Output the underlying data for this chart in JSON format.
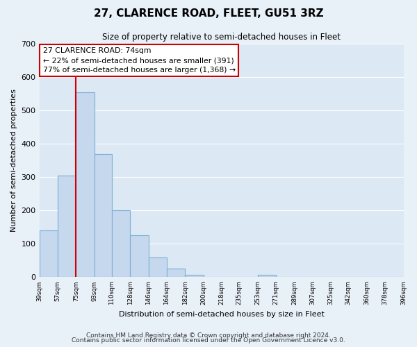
{
  "title": "27, CLARENCE ROAD, FLEET, GU51 3RZ",
  "subtitle": "Size of property relative to semi-detached houses in Fleet",
  "xlabel": "Distribution of semi-detached houses by size in Fleet",
  "ylabel": "Number of semi-detached properties",
  "bar_edges": [
    39,
    57,
    75,
    93,
    110,
    128,
    146,
    164,
    182,
    200,
    218,
    235,
    253,
    271,
    289,
    307,
    325,
    342,
    360,
    378,
    396
  ],
  "bar_heights": [
    140,
    305,
    555,
    370,
    200,
    125,
    60,
    25,
    8,
    0,
    0,
    0,
    8,
    0,
    0,
    0,
    0,
    0,
    0,
    0
  ],
  "bar_color": "#c5d8ee",
  "bar_edge_color": "#7bafd4",
  "property_line_x": 75,
  "property_line_color": "#cc0000",
  "annotation_title": "27 CLARENCE ROAD: 74sqm",
  "annotation_line1": "← 22% of semi-detached houses are smaller (391)",
  "annotation_line2": "77% of semi-detached houses are larger (1,368) →",
  "annotation_box_facecolor": "#ffffff",
  "annotation_box_edgecolor": "#cc0000",
  "ylim": [
    0,
    700
  ],
  "yticks": [
    0,
    100,
    200,
    300,
    400,
    500,
    600,
    700
  ],
  "tick_labels": [
    "39sqm",
    "57sqm",
    "75sqm",
    "93sqm",
    "110sqm",
    "128sqm",
    "146sqm",
    "164sqm",
    "182sqm",
    "200sqm",
    "218sqm",
    "235sqm",
    "253sqm",
    "271sqm",
    "289sqm",
    "307sqm",
    "325sqm",
    "342sqm",
    "360sqm",
    "378sqm",
    "396sqm"
  ],
  "footer1": "Contains HM Land Registry data © Crown copyright and database right 2024.",
  "footer2": "Contains public sector information licensed under the Open Government Licence v3.0.",
  "fig_background_color": "#e8f0f8",
  "plot_background_color": "#dce8f4",
  "grid_color": "#ffffff",
  "title_fontsize": 11,
  "subtitle_fontsize": 8.5,
  "ylabel_fontsize": 8,
  "xlabel_fontsize": 8,
  "footer_fontsize": 6.5
}
